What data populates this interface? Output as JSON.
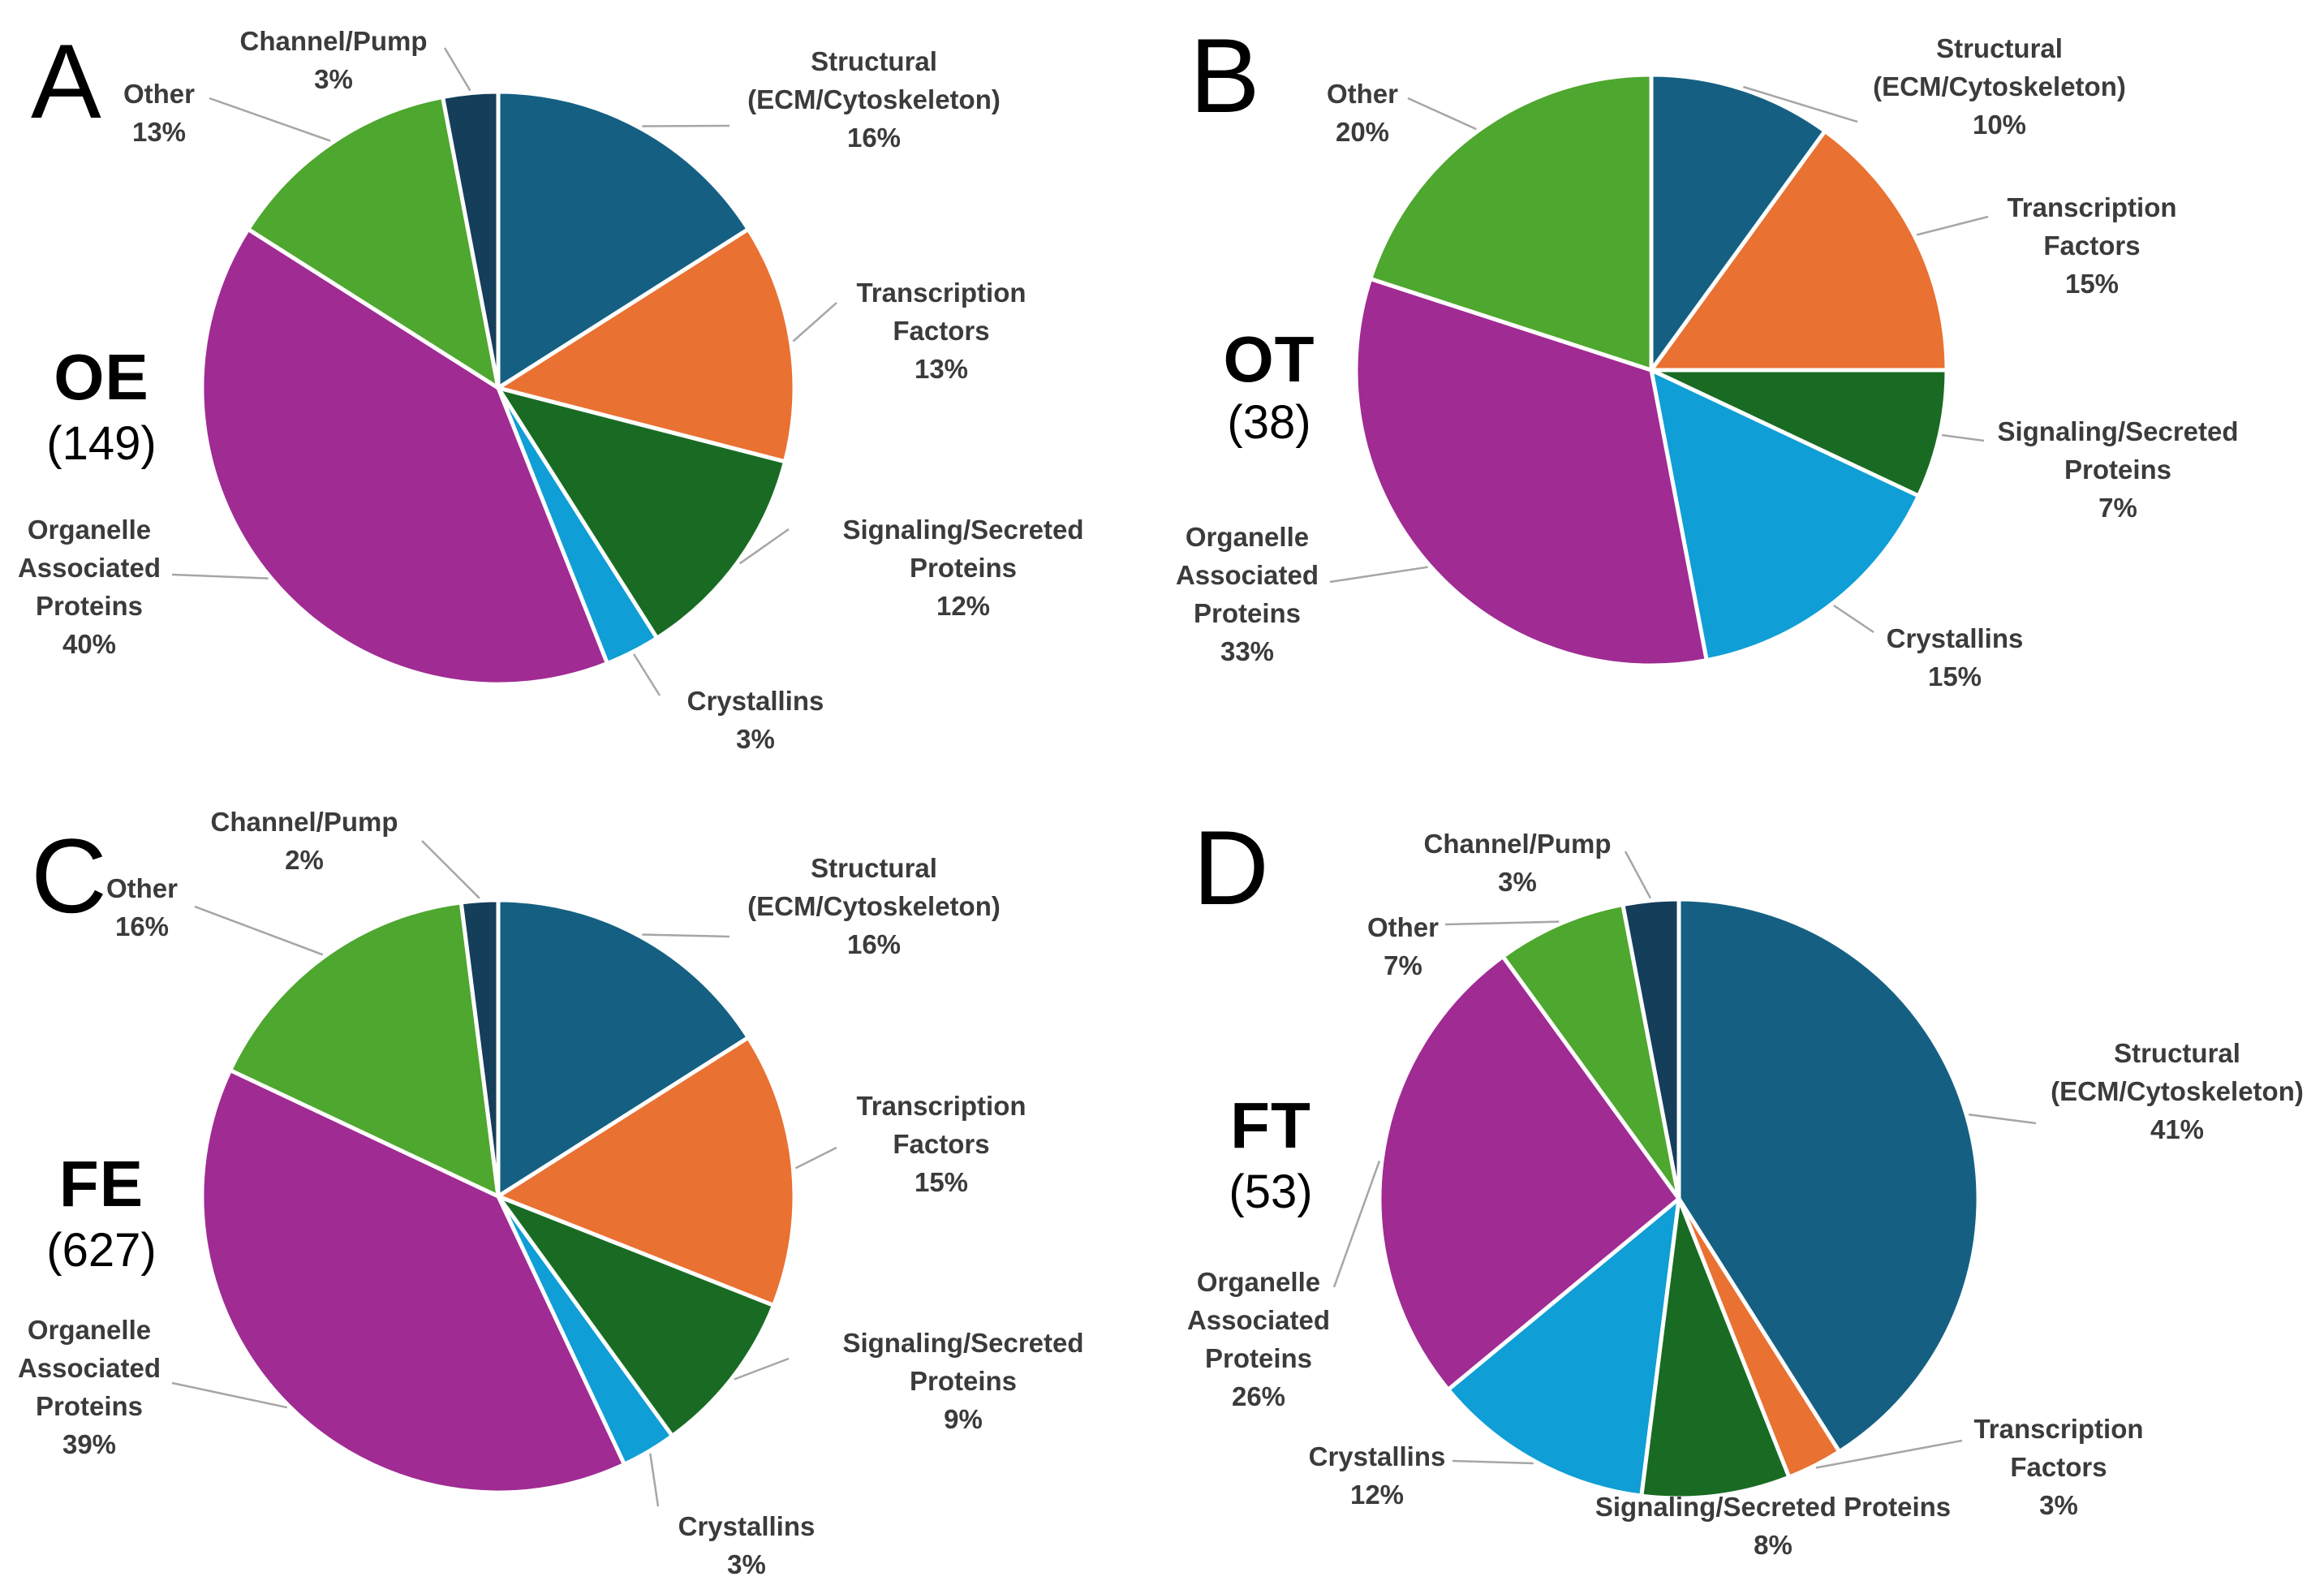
{
  "figure": {
    "background": "#FFFFFF",
    "label_color": "#3B3B3B",
    "leader_color": "#A6A6A6",
    "slice_stroke": "#FFFFFF",
    "palette": {
      "structural": "#156082",
      "transcription": "#E97132",
      "signaling": "#196B24",
      "crystallins": "#0F9ED5",
      "organelle": "#A02B93",
      "other": "#4EA72E",
      "channel": "#153E5A"
    }
  },
  "chart_data": [
    {
      "type": "pie",
      "panel_letter": "A",
      "group": "OE",
      "n": 149,
      "count_label": "(149)",
      "start": "12-oclock",
      "direction": "clockwise",
      "slices": [
        {
          "id": "structural",
          "label": "Structural (ECM/Cytoskeleton)",
          "label_lines": [
            "Structural",
            "(ECM/Cytoskeleton)"
          ],
          "value_pct": 16,
          "pct_text": "16%",
          "color": "#156082"
        },
        {
          "id": "transcription",
          "label": "Transcription Factors",
          "label_lines": [
            "Transcription",
            "Factors"
          ],
          "value_pct": 13,
          "pct_text": "13%",
          "color": "#E97132"
        },
        {
          "id": "signaling",
          "label": "Signaling/Secreted Proteins",
          "label_lines": [
            "Signaling/Secreted",
            "Proteins"
          ],
          "value_pct": 12,
          "pct_text": "12%",
          "color": "#196B24"
        },
        {
          "id": "crystallins",
          "label": "Crystallins",
          "label_lines": [
            "Crystallins"
          ],
          "value_pct": 3,
          "pct_text": "3%",
          "color": "#0F9ED5"
        },
        {
          "id": "organelle",
          "label": "Organelle Associated Proteins",
          "label_lines": [
            "Organelle",
            "Associated",
            "Proteins"
          ],
          "value_pct": 40,
          "pct_text": "40%",
          "color": "#A02B93"
        },
        {
          "id": "other",
          "label": "Other",
          "label_lines": [
            "Other"
          ],
          "value_pct": 13,
          "pct_text": "13%",
          "color": "#4EA72E"
        },
        {
          "id": "channel",
          "label": "Channel/Pump",
          "label_lines": [
            "Channel/Pump"
          ],
          "value_pct": 3,
          "pct_text": "3%",
          "color": "#153E5A"
        }
      ]
    },
    {
      "type": "pie",
      "panel_letter": "B",
      "group": "OT",
      "n": 38,
      "count_label": "(38)",
      "start": "12-oclock",
      "direction": "clockwise",
      "slices": [
        {
          "id": "structural",
          "label": "Structural (ECM/Cytoskeleton)",
          "label_lines": [
            "Structural",
            "(ECM/Cytoskeleton)"
          ],
          "value_pct": 10,
          "pct_text": "10%",
          "color": "#156082"
        },
        {
          "id": "transcription",
          "label": "Transcription Factors",
          "label_lines": [
            "Transcription",
            "Factors"
          ],
          "value_pct": 15,
          "pct_text": "15%",
          "color": "#E97132"
        },
        {
          "id": "signaling",
          "label": "Signaling/Secreted Proteins",
          "label_lines": [
            "Signaling/Secreted",
            "Proteins"
          ],
          "value_pct": 7,
          "pct_text": "7%",
          "color": "#196B24"
        },
        {
          "id": "crystallins",
          "label": "Crystallins",
          "label_lines": [
            "Crystallins"
          ],
          "value_pct": 15,
          "pct_text": "15%",
          "color": "#0F9ED5"
        },
        {
          "id": "organelle",
          "label": "Organelle Associated Proteins",
          "label_lines": [
            "Organelle",
            "Associated",
            "Proteins"
          ],
          "value_pct": 33,
          "pct_text": "33%",
          "color": "#A02B93"
        },
        {
          "id": "other",
          "label": "Other",
          "label_lines": [
            "Other"
          ],
          "value_pct": 20,
          "pct_text": "20%",
          "color": "#4EA72E"
        }
      ]
    },
    {
      "type": "pie",
      "panel_letter": "C",
      "group": "FE",
      "n": 627,
      "count_label": "(627)",
      "start": "12-oclock",
      "direction": "clockwise",
      "slices": [
        {
          "id": "structural",
          "label": "Structural (ECM/Cytoskeleton)",
          "label_lines": [
            "Structural",
            "(ECM/Cytoskeleton)"
          ],
          "value_pct": 16,
          "pct_text": "16%",
          "color": "#156082"
        },
        {
          "id": "transcription",
          "label": "Transcription Factors",
          "label_lines": [
            "Transcription",
            "Factors"
          ],
          "value_pct": 15,
          "pct_text": "15%",
          "color": "#E97132"
        },
        {
          "id": "signaling",
          "label": "Signaling/Secreted Proteins",
          "label_lines": [
            "Signaling/Secreted",
            "Proteins"
          ],
          "value_pct": 9,
          "pct_text": "9%",
          "color": "#196B24"
        },
        {
          "id": "crystallins",
          "label": "Crystallins",
          "label_lines": [
            "Crystallins"
          ],
          "value_pct": 3,
          "pct_text": "3%",
          "color": "#0F9ED5"
        },
        {
          "id": "organelle",
          "label": "Organelle Associated Proteins",
          "label_lines": [
            "Organelle",
            "Associated",
            "Proteins"
          ],
          "value_pct": 39,
          "pct_text": "39%",
          "color": "#A02B93"
        },
        {
          "id": "other",
          "label": "Other",
          "label_lines": [
            "Other"
          ],
          "value_pct": 16,
          "pct_text": "16%",
          "color": "#4EA72E"
        },
        {
          "id": "channel",
          "label": "Channel/Pump",
          "label_lines": [
            "Channel/Pump"
          ],
          "value_pct": 2,
          "pct_text": "2%",
          "color": "#153E5A"
        }
      ]
    },
    {
      "type": "pie",
      "panel_letter": "D",
      "group": "FT",
      "n": 53,
      "count_label": "(53)",
      "start": "12-oclock",
      "direction": "clockwise",
      "slices": [
        {
          "id": "structural",
          "label": "Structural (ECM/Cytoskeleton)",
          "label_lines": [
            "Structural",
            "(ECM/Cytoskeleton)"
          ],
          "value_pct": 41,
          "pct_text": "41%",
          "color": "#156082"
        },
        {
          "id": "transcription",
          "label": "Transcription Factors",
          "label_lines": [
            "Transcription",
            "Factors"
          ],
          "value_pct": 3,
          "pct_text": "3%",
          "color": "#E97132"
        },
        {
          "id": "signaling",
          "label": "Signaling/Secreted Proteins",
          "label_lines": [
            "Signaling/Secreted Proteins"
          ],
          "value_pct": 8,
          "pct_text": "8%",
          "color": "#196B24"
        },
        {
          "id": "crystallins",
          "label": "Crystallins",
          "label_lines": [
            "Crystallins"
          ],
          "value_pct": 12,
          "pct_text": "12%",
          "color": "#0F9ED5"
        },
        {
          "id": "organelle",
          "label": "Organelle Associated Proteins",
          "label_lines": [
            "Organelle",
            "Associated",
            "Proteins"
          ],
          "value_pct": 26,
          "pct_text": "26%",
          "color": "#A02B93"
        },
        {
          "id": "other",
          "label": "Other",
          "label_lines": [
            "Other"
          ],
          "value_pct": 7,
          "pct_text": "7%",
          "color": "#4EA72E"
        },
        {
          "id": "channel",
          "label": "Channel/Pump",
          "label_lines": [
            "Channel/Pump"
          ],
          "value_pct": 3,
          "pct_text": "3%",
          "color": "#153E5A"
        }
      ]
    }
  ]
}
